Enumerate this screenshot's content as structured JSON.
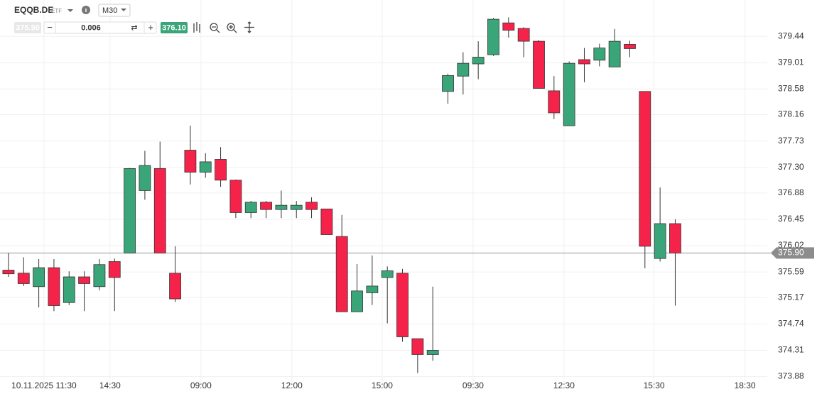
{
  "toolbar": {
    "symbol": "EQQB.DE",
    "symbol_type": "ETF",
    "timeframe": "M30",
    "bid": "375.90",
    "step": "0.006",
    "ask": "376.10"
  },
  "chart_data": {
    "type": "candlestick",
    "up_color": "#3ba57a",
    "down_color": "#f5234a",
    "grid": true,
    "open": [
      375.62,
      375.57,
      375.35,
      375.66,
      375.09,
      375.51,
      375.35,
      375.76,
      375.9,
      376.92,
      377.28,
      375.57,
      377.58,
      377.22,
      377.43,
      377.09,
      376.56,
      376.73,
      376.61,
      376.61,
      376.73,
      376.62,
      376.17,
      374.94,
      375.25,
      375.5,
      375.57,
      374.5,
      374.24,
      378.54,
      378.79,
      378.99,
      379.14,
      379.66,
      379.57,
      379.36,
      378.55,
      377.98,
      379.06,
      379.05,
      378.94,
      379.31,
      378.54,
      375.81,
      376.38
    ],
    "high": [
      375.9,
      375.83,
      375.8,
      375.8,
      375.6,
      375.6,
      375.8,
      375.81,
      377.29,
      377.57,
      377.72,
      376.01,
      377.98,
      377.53,
      377.63,
      377.1,
      376.75,
      376.75,
      376.92,
      376.75,
      376.81,
      376.62,
      376.52,
      375.72,
      375.86,
      375.68,
      375.64,
      374.5,
      375.35,
      378.83,
      379.18,
      379.36,
      379.74,
      379.75,
      379.59,
      379.38,
      378.79,
      379.03,
      379.25,
      379.32,
      379.56,
      379.37,
      378.54,
      376.97,
      376.45
    ],
    "low": [
      375.51,
      375.36,
      375.01,
      374.95,
      375.05,
      374.95,
      375.29,
      374.95,
      375.9,
      376.77,
      375.9,
      375.1,
      377.02,
      377.13,
      376.98,
      376.47,
      376.47,
      376.47,
      376.47,
      376.47,
      376.47,
      376.2,
      374.94,
      374.94,
      375.05,
      374.75,
      374.45,
      373.94,
      374.14,
      378.34,
      378.49,
      378.74,
      379.12,
      379.42,
      379.1,
      378.59,
      378.09,
      377.98,
      378.69,
      378.95,
      378.94,
      379.1,
      375.65,
      375.76,
      375.04
    ],
    "close": [
      375.56,
      375.4,
      375.66,
      375.04,
      375.51,
      375.4,
      375.71,
      375.5,
      377.28,
      377.33,
      375.9,
      375.15,
      377.22,
      377.39,
      377.09,
      376.56,
      376.73,
      376.61,
      376.68,
      376.68,
      376.61,
      376.2,
      374.94,
      375.28,
      375.36,
      375.61,
      374.53,
      374.24,
      374.31,
      378.8,
      379.0,
      379.1,
      379.72,
      379.54,
      379.36,
      378.59,
      378.19,
      379.0,
      378.99,
      379.25,
      379.36,
      379.24,
      376.01,
      376.38,
      375.9
    ],
    "xlim": [
      -0.56,
      49.37
    ],
    "xticks": [
      {
        "value": 2.34,
        "label": "10.11.2025 11:30"
      },
      {
        "value": 6.7,
        "label": "14:30"
      },
      {
        "value": 12.7,
        "label": "09:00"
      },
      {
        "value": 18.7,
        "label": "12:00"
      },
      {
        "value": 24.66,
        "label": "15:00"
      },
      {
        "value": 30.66,
        "label": "09:30"
      },
      {
        "value": 36.66,
        "label": "12:30"
      },
      {
        "value": 42.6,
        "label": "15:30"
      },
      {
        "value": 48.6,
        "label": "18:30"
      }
    ],
    "ylim": [
      373.77,
      379.86
    ],
    "yticks": [
      379.44,
      379.01,
      378.58,
      378.16,
      377.73,
      {
        "value": 377.3,
        "label": "377.30"
      },
      376.88,
      376.45,
      376.02,
      375.59,
      375.17,
      374.74,
      374.31,
      373.88
    ],
    "current_price": {
      "value": 375.9,
      "label": "375.90"
    }
  }
}
